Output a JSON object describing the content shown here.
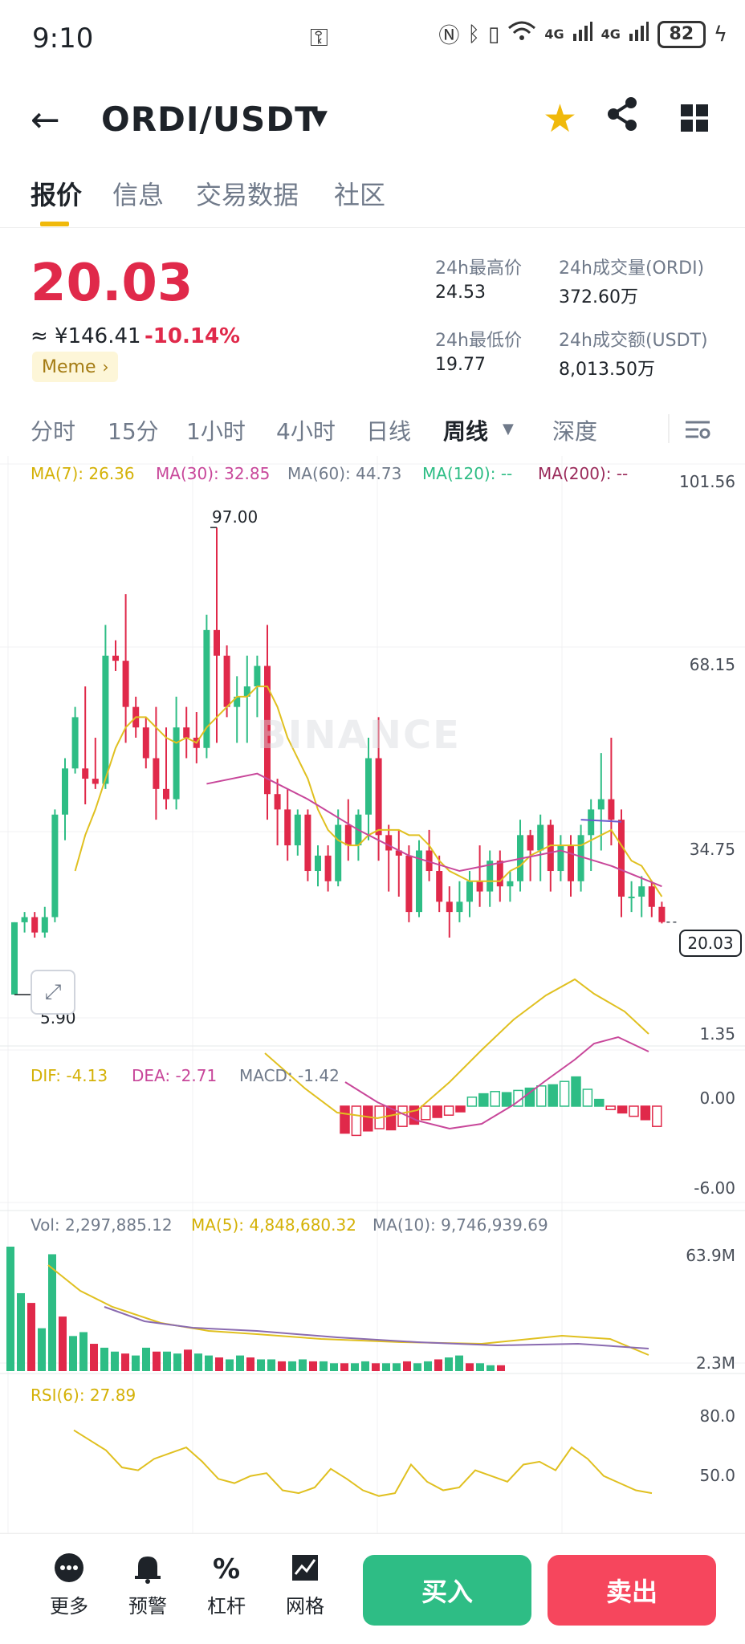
{
  "status_bar": {
    "time": "9:10",
    "network1": "4G",
    "network2": "4G",
    "battery": "82"
  },
  "header": {
    "pair": "ORDI/USDT",
    "icons": [
      "back-arrow-icon",
      "caret-down-icon",
      "star-icon",
      "share-icon",
      "grid-icon"
    ],
    "favorite": true,
    "star_color": "#f0b90b"
  },
  "tabs": [
    {
      "label": "报价",
      "active": true
    },
    {
      "label": "信息",
      "active": false
    },
    {
      "label": "交易数据",
      "active": false
    },
    {
      "label": "社区",
      "active": false
    }
  ],
  "ticker": {
    "price": "20.03",
    "fiat": "≈ ¥146.41",
    "change": "-10.14%",
    "tag": "Meme",
    "tag_arrow": "›",
    "color_down": "#e0294a",
    "color_up": "#2ebd85",
    "stats": [
      {
        "label": "24h最高价",
        "value": "24.53"
      },
      {
        "label": "24h成交量(ORDI)",
        "value": "372.60万"
      },
      {
        "label": "24h最低价",
        "value": "19.77"
      },
      {
        "label": "24h成交额(USDT)",
        "value": "8,013.50万"
      }
    ]
  },
  "intervals": [
    {
      "label": "分时",
      "active": false
    },
    {
      "label": "15分",
      "active": false
    },
    {
      "label": "1小时",
      "active": false
    },
    {
      "label": "4小时",
      "active": false
    },
    {
      "label": "日线",
      "active": false
    },
    {
      "label": "周线",
      "active": true
    },
    {
      "label": "深度",
      "active": false
    }
  ],
  "chart_labels": {
    "ma7": "MA(7): 26.36",
    "ma30": "MA(30): 32.85",
    "ma60": "MA(60): 44.73",
    "ma120": "MA(120): --",
    "ma200": "MA(200): --",
    "y_ticks": [
      "101.56",
      "68.15",
      "34.75",
      "1.35"
    ],
    "last_price": "20.03",
    "high_label": "97.00",
    "low_label": "5.90",
    "watermark": "BINANCE",
    "dif": "DIF: -4.13",
    "dea": "DEA: -2.71",
    "macd": "MACD: -1.42",
    "macd_ticks": [
      "0.00",
      "-6.00"
    ],
    "vol": "Vol: 2,297,885.12",
    "vol_ma5": "MA(5): 4,848,680.32",
    "vol_ma10": "MA(10): 9,746,939.69",
    "vol_ticks": [
      "63.9M",
      "2.3M"
    ],
    "rsi": "RSI(6): 27.89",
    "rsi_ticks": [
      "80.0",
      "50.0"
    ]
  },
  "chart_data": {
    "type": "candlestick",
    "interval": "weekly",
    "ylim": [
      1.35,
      101.56
    ],
    "candles": [
      [
        5.9,
        20,
        5.9,
        20
      ],
      [
        20,
        22,
        18,
        21
      ],
      [
        21,
        22,
        17,
        18
      ],
      [
        18,
        23,
        17,
        21
      ],
      [
        21,
        42,
        20,
        41
      ],
      [
        41,
        52,
        36,
        50
      ],
      [
        50,
        62,
        49,
        60
      ],
      [
        50,
        66,
        43,
        48
      ],
      [
        48,
        56,
        46,
        47
      ],
      [
        47,
        78,
        46,
        72
      ],
      [
        72,
        75,
        69,
        71
      ],
      [
        71,
        84,
        55,
        62
      ],
      [
        62,
        64,
        56,
        58
      ],
      [
        58,
        60,
        50,
        52
      ],
      [
        52,
        62,
        40,
        46
      ],
      [
        46,
        58,
        42,
        44
      ],
      [
        44,
        64,
        42,
        58
      ],
      [
        58,
        62,
        52,
        56
      ],
      [
        56,
        61,
        51,
        54
      ],
      [
        54,
        80,
        52,
        77
      ],
      [
        77,
        97,
        55,
        72
      ],
      [
        72,
        74,
        60,
        62
      ],
      [
        62,
        68,
        55,
        64
      ],
      [
        64,
        72,
        55,
        66
      ],
      [
        66,
        72,
        60,
        70
      ],
      [
        70,
        78,
        40,
        45
      ],
      [
        45,
        48,
        35,
        42
      ],
      [
        42,
        46,
        32,
        35
      ],
      [
        35,
        42,
        33,
        41
      ],
      [
        41,
        42,
        28,
        30
      ],
      [
        30,
        35,
        27,
        33
      ],
      [
        33,
        35,
        26,
        28
      ],
      [
        28,
        42,
        27,
        39
      ],
      [
        39,
        44,
        32,
        35
      ],
      [
        35,
        42,
        32,
        41
      ],
      [
        41,
        56,
        36,
        52
      ],
      [
        52,
        60,
        32,
        37
      ],
      [
        37,
        39,
        26,
        34
      ],
      [
        34,
        38,
        25,
        33
      ],
      [
        33,
        35,
        20,
        22
      ],
      [
        22,
        36,
        21,
        34
      ],
      [
        34,
        38,
        28,
        30
      ],
      [
        30,
        33,
        22,
        24
      ],
      [
        24,
        27,
        17,
        22
      ],
      [
        22,
        28,
        20,
        24
      ],
      [
        24,
        30,
        21,
        28
      ],
      [
        28,
        35,
        23,
        26
      ],
      [
        26,
        34,
        23,
        32
      ],
      [
        32,
        34,
        24,
        27
      ],
      [
        27,
        30,
        24,
        28
      ],
      [
        28,
        40,
        26,
        37
      ],
      [
        37,
        38,
        28,
        34
      ],
      [
        34,
        41,
        28,
        39
      ],
      [
        39,
        40,
        26,
        30
      ],
      [
        30,
        37,
        28,
        35
      ],
      [
        35,
        37,
        25,
        28
      ],
      [
        28,
        39,
        26,
        37
      ],
      [
        37,
        44,
        30,
        42
      ],
      [
        42,
        53,
        34,
        44
      ],
      [
        44,
        56,
        35,
        40
      ],
      [
        40,
        42,
        21,
        25
      ],
      [
        25,
        28,
        22,
        25
      ],
      [
        25,
        29,
        21,
        27
      ],
      [
        27,
        28,
        21,
        23
      ],
      [
        23,
        24,
        19.77,
        20.03
      ]
    ],
    "ma7": [
      null,
      null,
      null,
      null,
      null,
      null,
      30,
      37,
      42,
      48,
      54,
      58,
      60,
      60,
      58,
      56,
      55,
      56,
      55,
      58,
      60,
      62,
      64,
      64,
      66,
      66,
      62,
      56,
      52,
      48,
      42,
      38,
      36,
      35,
      35,
      37,
      38,
      38,
      38,
      37,
      37,
      35,
      32,
      30,
      29,
      28,
      28,
      28,
      28,
      30,
      31,
      33,
      34,
      35,
      35,
      35,
      35,
      36,
      37,
      38,
      35,
      32,
      31,
      28,
      25
    ],
    "ma30": [
      null,
      null,
      null,
      null,
      null,
      null,
      null,
      null,
      null,
      null,
      null,
      null,
      null,
      null,
      null,
      null,
      null,
      null,
      null,
      null,
      null,
      null,
      null,
      null,
      null,
      null,
      null,
      null,
      null,
      null,
      null,
      null,
      null,
      null,
      null,
      null,
      null,
      null,
      null,
      null,
      null,
      null,
      null,
      null,
      null,
      null,
      null,
      null,
      null,
      null,
      null,
      null,
      null,
      null,
      null,
      null,
      null,
      null,
      null,
      null,
      null,
      null,
      null,
      null,
      null
    ],
    "macd_hist": [
      -2.4,
      -2.6,
      -2.2,
      -2.0,
      -2.1,
      -1.8,
      -1.6,
      -1.2,
      -1.0,
      -0.8,
      -0.5,
      0.8,
      1.1,
      1.3,
      1.2,
      1.4,
      1.6,
      1.8,
      1.9,
      2.2,
      2.6,
      1.5,
      0.6,
      -0.3,
      -0.6,
      -0.9,
      -1.2,
      -1.8
    ],
    "vol_bars": [
      63.9,
      40,
      35,
      22,
      60,
      28,
      18,
      20,
      14,
      12,
      10,
      9,
      8,
      12,
      10,
      10,
      9,
      11,
      9,
      8,
      7,
      6,
      8,
      7,
      6,
      6,
      5,
      5,
      6,
      5,
      5,
      4,
      4,
      4,
      5,
      4,
      4,
      4,
      5,
      4,
      5,
      6,
      7,
      8,
      4,
      4,
      3,
      3
    ],
    "rsi": [
      72,
      65,
      58,
      46,
      44,
      52,
      56,
      60,
      50,
      38,
      35,
      40,
      42,
      30,
      28,
      32,
      45,
      38,
      30,
      26,
      28,
      48,
      36,
      30,
      32,
      44,
      40,
      36,
      48,
      50,
      44,
      60,
      52,
      40,
      35,
      30,
      28
    ]
  }
}
